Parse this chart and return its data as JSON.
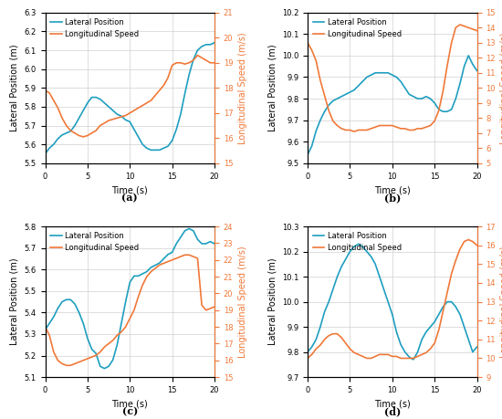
{
  "subplots": [
    {
      "label": "(a)",
      "lateral_ylim": [
        5.5,
        6.3
      ],
      "lateral_yticks": [
        5.5,
        5.6,
        5.7,
        5.8,
        5.9,
        6.0,
        6.1,
        6.2,
        6.3
      ],
      "speed_ylim": [
        15,
        21
      ],
      "speed_yticks": [
        15,
        16,
        17,
        18,
        19,
        20,
        21
      ],
      "xlim": [
        0,
        20
      ],
      "xticks": [
        0,
        5,
        10,
        15,
        20
      ],
      "lateral_data": {
        "x": [
          0,
          0.5,
          1,
          1.5,
          2,
          2.5,
          3,
          3.5,
          4,
          4.5,
          5,
          5.5,
          6,
          6.5,
          7,
          7.5,
          8,
          8.5,
          9,
          9.5,
          10,
          10.5,
          11,
          11.5,
          12,
          12.5,
          13,
          13.5,
          14,
          14.5,
          15,
          15.5,
          16,
          16.5,
          17,
          17.5,
          18,
          18.5,
          19,
          19.5,
          20
        ],
        "y": [
          5.55,
          5.58,
          5.6,
          5.63,
          5.65,
          5.66,
          5.67,
          5.7,
          5.74,
          5.78,
          5.82,
          5.85,
          5.85,
          5.84,
          5.82,
          5.8,
          5.78,
          5.76,
          5.75,
          5.73,
          5.72,
          5.68,
          5.64,
          5.6,
          5.58,
          5.57,
          5.57,
          5.57,
          5.58,
          5.59,
          5.62,
          5.68,
          5.76,
          5.87,
          5.97,
          6.05,
          6.1,
          6.12,
          6.13,
          6.13,
          6.14
        ]
      },
      "speed_data": {
        "x": [
          0,
          0.5,
          1,
          1.5,
          2,
          2.5,
          3,
          3.5,
          4,
          4.5,
          5,
          5.5,
          6,
          6.5,
          7,
          7.5,
          8,
          8.5,
          9,
          9.5,
          10,
          10.5,
          11,
          11.5,
          12,
          12.5,
          13,
          13.5,
          14,
          14.5,
          15,
          15.5,
          16,
          16.5,
          17,
          17.5,
          18,
          18.5,
          19,
          19.5,
          20
        ],
        "y": [
          17.9,
          17.8,
          17.5,
          17.2,
          16.8,
          16.5,
          16.3,
          16.2,
          16.1,
          16.05,
          16.1,
          16.2,
          16.3,
          16.5,
          16.6,
          16.7,
          16.75,
          16.8,
          16.85,
          16.9,
          17.0,
          17.1,
          17.2,
          17.3,
          17.4,
          17.5,
          17.7,
          17.9,
          18.1,
          18.4,
          18.9,
          19.0,
          19.0,
          18.95,
          19.0,
          19.1,
          19.3,
          19.2,
          19.1,
          19.0,
          19.0
        ]
      }
    },
    {
      "label": "(b)",
      "lateral_ylim": [
        9.5,
        10.2
      ],
      "lateral_yticks": [
        9.5,
        9.6,
        9.7,
        9.8,
        9.9,
        10.0,
        10.1,
        10.2
      ],
      "speed_ylim": [
        5,
        15
      ],
      "speed_yticks": [
        5,
        6,
        7,
        8,
        9,
        10,
        11,
        12,
        13,
        14,
        15
      ],
      "xlim": [
        0,
        20
      ],
      "xticks": [
        0,
        5,
        10,
        15,
        20
      ],
      "lateral_data": {
        "x": [
          0,
          0.5,
          1,
          1.5,
          2,
          2.5,
          3,
          3.5,
          4,
          4.5,
          5,
          5.5,
          6,
          6.5,
          7,
          7.5,
          8,
          8.5,
          9,
          9.5,
          10,
          10.5,
          11,
          11.5,
          12,
          12.5,
          13,
          13.5,
          14,
          14.5,
          15,
          15.5,
          16,
          16.5,
          17,
          17.5,
          18,
          18.5,
          19,
          19.5,
          20
        ],
        "y": [
          9.54,
          9.58,
          9.65,
          9.7,
          9.74,
          9.77,
          9.79,
          9.8,
          9.81,
          9.82,
          9.83,
          9.84,
          9.86,
          9.88,
          9.9,
          9.91,
          9.92,
          9.92,
          9.92,
          9.92,
          9.91,
          9.9,
          9.88,
          9.85,
          9.82,
          9.81,
          9.8,
          9.8,
          9.81,
          9.8,
          9.78,
          9.75,
          9.74,
          9.74,
          9.75,
          9.8,
          9.87,
          9.95,
          10.0,
          9.96,
          9.93
        ]
      },
      "speed_data": {
        "x": [
          0,
          0.5,
          1,
          1.5,
          2,
          2.5,
          3,
          3.5,
          4,
          4.5,
          5,
          5.5,
          6,
          6.5,
          7,
          7.5,
          8,
          8.5,
          9,
          9.5,
          10,
          10.5,
          11,
          11.5,
          12,
          12.5,
          13,
          13.5,
          14,
          14.5,
          15,
          15.5,
          16,
          16.5,
          17,
          17.5,
          18,
          18.5,
          19,
          19.5,
          20
        ],
        "y": [
          13.0,
          12.5,
          11.8,
          10.5,
          9.5,
          8.5,
          7.8,
          7.5,
          7.3,
          7.2,
          7.2,
          7.1,
          7.2,
          7.2,
          7.2,
          7.3,
          7.4,
          7.5,
          7.5,
          7.5,
          7.5,
          7.4,
          7.3,
          7.3,
          7.2,
          7.2,
          7.3,
          7.3,
          7.4,
          7.5,
          7.8,
          8.5,
          9.8,
          11.5,
          13.0,
          14.0,
          14.2,
          14.1,
          14.0,
          13.9,
          13.8
        ]
      }
    },
    {
      "label": "(c)",
      "lateral_ylim": [
        5.1,
        5.8
      ],
      "lateral_yticks": [
        5.1,
        5.2,
        5.3,
        5.4,
        5.5,
        5.6,
        5.7,
        5.8
      ],
      "speed_ylim": [
        15,
        24
      ],
      "speed_yticks": [
        15,
        16,
        17,
        18,
        19,
        20,
        21,
        22,
        23,
        24
      ],
      "xlim": [
        0,
        20
      ],
      "xticks": [
        0,
        5,
        10,
        15,
        20
      ],
      "lateral_data": {
        "x": [
          0,
          0.5,
          1,
          1.5,
          2,
          2.5,
          3,
          3.5,
          4,
          4.5,
          5,
          5.5,
          6,
          6.5,
          7,
          7.5,
          8,
          8.5,
          9,
          9.5,
          10,
          10.5,
          11,
          11.5,
          12,
          12.5,
          13,
          13.5,
          14,
          14.5,
          15,
          15.5,
          16,
          16.5,
          17,
          17.5,
          18,
          18.5,
          19,
          19.5,
          20
        ],
        "y": [
          5.32,
          5.35,
          5.38,
          5.42,
          5.45,
          5.46,
          5.46,
          5.44,
          5.4,
          5.35,
          5.28,
          5.23,
          5.21,
          5.15,
          5.14,
          5.15,
          5.18,
          5.25,
          5.35,
          5.45,
          5.54,
          5.57,
          5.57,
          5.58,
          5.59,
          5.61,
          5.62,
          5.63,
          5.65,
          5.67,
          5.68,
          5.72,
          5.75,
          5.78,
          5.79,
          5.78,
          5.74,
          5.72,
          5.72,
          5.73,
          5.72
        ]
      },
      "speed_data": {
        "x": [
          0,
          0.5,
          1,
          1.5,
          2,
          2.5,
          3,
          3.5,
          4,
          4.5,
          5,
          5.5,
          6,
          6.5,
          7,
          7.5,
          8,
          8.5,
          9,
          9.5,
          10,
          10.5,
          11,
          11.5,
          12,
          12.5,
          13,
          13.5,
          14,
          14.5,
          15,
          15.5,
          16,
          16.5,
          17,
          17.5,
          18,
          18.5,
          19,
          19.5,
          20
        ],
        "y": [
          18.0,
          17.5,
          16.5,
          16.0,
          15.8,
          15.7,
          15.7,
          15.8,
          15.9,
          16.0,
          16.1,
          16.2,
          16.3,
          16.5,
          16.8,
          17.0,
          17.2,
          17.5,
          17.7,
          18.0,
          18.5,
          19.0,
          19.8,
          20.5,
          21.0,
          21.3,
          21.5,
          21.7,
          21.8,
          21.9,
          22.0,
          22.1,
          22.2,
          22.3,
          22.3,
          22.2,
          22.1,
          19.3,
          19.0,
          19.1,
          19.2
        ]
      }
    },
    {
      "label": "(d)",
      "lateral_ylim": [
        9.7,
        10.3
      ],
      "lateral_yticks": [
        9.7,
        9.8,
        9.9,
        10.0,
        10.1,
        10.2,
        10.3
      ],
      "speed_ylim": [
        9,
        17
      ],
      "speed_yticks": [
        9,
        10,
        11,
        12,
        13,
        14,
        15,
        16,
        17
      ],
      "xlim": [
        0,
        20
      ],
      "xticks": [
        0,
        5,
        10,
        15,
        20
      ],
      "lateral_data": {
        "x": [
          0,
          0.5,
          1,
          1.5,
          2,
          2.5,
          3,
          3.5,
          4,
          4.5,
          5,
          5.5,
          6,
          6.5,
          7,
          7.5,
          8,
          8.5,
          9,
          9.5,
          10,
          10.5,
          11,
          11.5,
          12,
          12.5,
          13,
          13.5,
          14,
          14.5,
          15,
          15.5,
          16,
          16.5,
          17,
          17.5,
          18,
          18.5,
          19,
          19.5,
          20
        ],
        "y": [
          9.8,
          9.82,
          9.85,
          9.9,
          9.96,
          10.0,
          10.05,
          10.1,
          10.14,
          10.17,
          10.2,
          10.22,
          10.23,
          10.22,
          10.2,
          10.18,
          10.15,
          10.1,
          10.05,
          10.0,
          9.95,
          9.88,
          9.83,
          9.8,
          9.78,
          9.77,
          9.8,
          9.85,
          9.88,
          9.9,
          9.92,
          9.95,
          9.98,
          10.0,
          10.0,
          9.98,
          9.95,
          9.9,
          9.85,
          9.8,
          9.82
        ]
      },
      "speed_data": {
        "x": [
          0,
          0.5,
          1,
          1.5,
          2,
          2.5,
          3,
          3.5,
          4,
          4.5,
          5,
          5.5,
          6,
          6.5,
          7,
          7.5,
          8,
          8.5,
          9,
          9.5,
          10,
          10.5,
          11,
          11.5,
          12,
          12.5,
          13,
          13.5,
          14,
          14.5,
          15,
          15.5,
          16,
          16.5,
          17,
          17.5,
          18,
          18.5,
          19,
          19.5,
          20
        ],
        "y": [
          10.0,
          10.2,
          10.5,
          10.7,
          11.0,
          11.2,
          11.3,
          11.3,
          11.1,
          10.8,
          10.5,
          10.3,
          10.2,
          10.1,
          10.0,
          10.0,
          10.1,
          10.2,
          10.2,
          10.2,
          10.1,
          10.1,
          10.0,
          10.0,
          10.0,
          10.0,
          10.1,
          10.2,
          10.3,
          10.5,
          10.8,
          11.5,
          12.5,
          13.5,
          14.5,
          15.2,
          15.8,
          16.2,
          16.3,
          16.2,
          16.0
        ]
      }
    }
  ],
  "lateral_color": "#1E9EC0",
  "speed_color": "#F07838",
  "line_width": 1.2,
  "xlabel": "Time (s)",
  "lateral_ylabel": "Lateral Position (m)",
  "speed_ylabel": "Longitudinal Speed (m/s)",
  "legend_lateral": "Lateral Position",
  "legend_speed": "Longitudinal Speed",
  "background_color": "#ffffff",
  "grid_color": "#d0d0d0",
  "label_fontsize": 7,
  "tick_fontsize": 6,
  "legend_fontsize": 6
}
